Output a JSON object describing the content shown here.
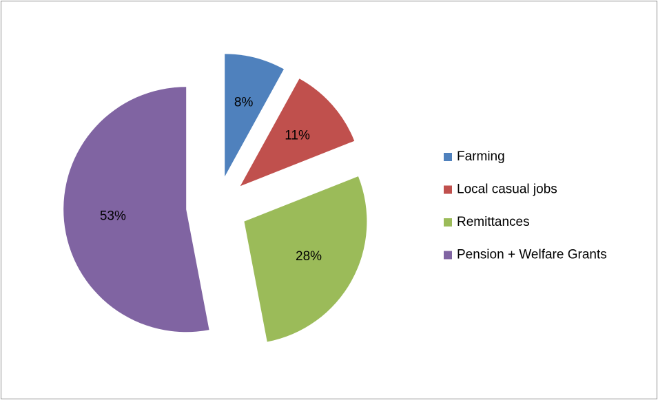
{
  "chart_data": {
    "type": "pie",
    "categories": [
      "Farming",
      "Local casual jobs",
      "Remittances",
      "Pension + Welfare Grants"
    ],
    "values": [
      8,
      11,
      28,
      53
    ],
    "value_labels": [
      "8%",
      "11%",
      "28%",
      "53%"
    ],
    "colors": [
      "#4f81bd",
      "#c0504d",
      "#9bbb59",
      "#8064a2"
    ],
    "exploded": true,
    "legend": "right"
  }
}
